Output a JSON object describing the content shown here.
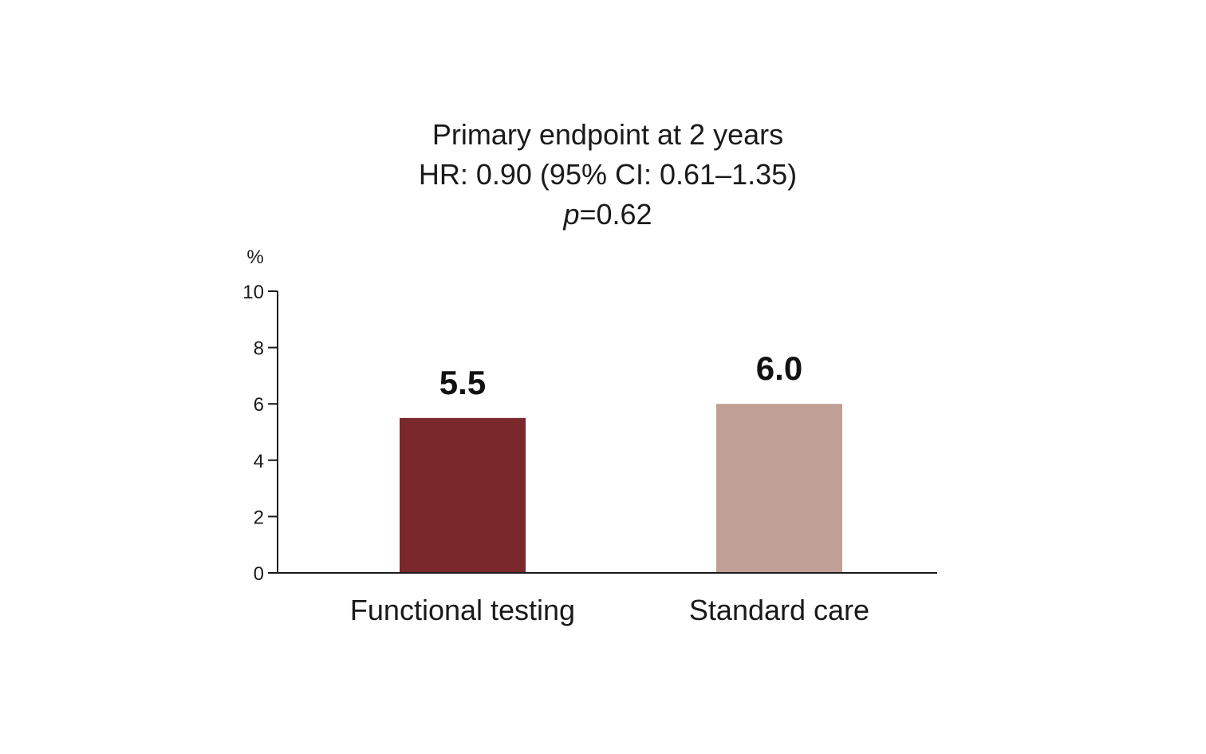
{
  "chart_data": {
    "type": "bar",
    "title_lines": [
      "Primary endpoint at 2 years",
      "HR: 0.90 (95% CI: 0.61–1.35)"
    ],
    "p_value": {
      "symbol": "p",
      "text": "=0.62"
    },
    "ylabel": "%",
    "xlabel": "",
    "ylim": [
      0,
      10
    ],
    "yticks": [
      0,
      2,
      4,
      6,
      8,
      10
    ],
    "categories": [
      "Functional testing",
      "Standard care"
    ],
    "values": [
      5.5,
      6.0
    ],
    "value_labels": [
      "5.5",
      "6.0"
    ],
    "colors": [
      "#7a282b",
      "#c0a096"
    ],
    "axis_color": "#1a1a1a",
    "grid": false,
    "legend": "none"
  }
}
